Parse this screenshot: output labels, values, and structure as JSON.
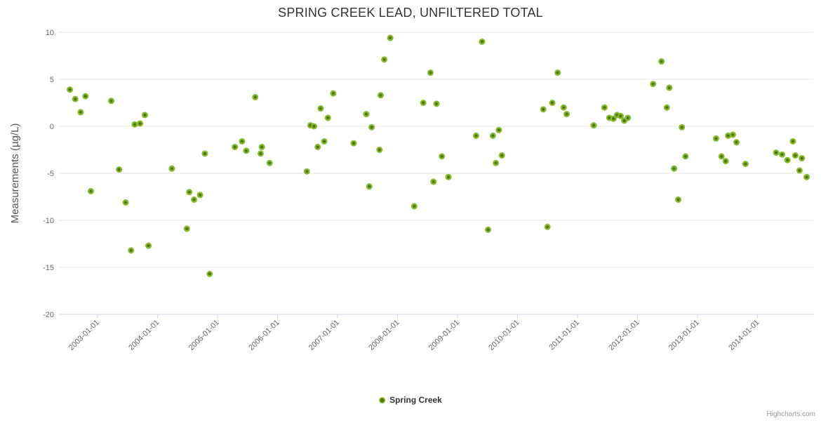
{
  "title": "SPRING CREEK LEAD, UNFILTERED TOTAL",
  "legend": {
    "label": "Spring Creek"
  },
  "credits": "Highcharts.com",
  "colors": {
    "marker_outer": "#84bb2a",
    "marker_inner": "#4b7405",
    "grid": "#e6e6e6",
    "axis_line": "#ccd6eb",
    "tick_label": "#666666",
    "axis_title": "#555555",
    "title_text": "#333333",
    "credits_text": "#999999",
    "background": "#ffffff"
  },
  "chart_data": {
    "type": "scatter",
    "title": "SPRING CREEK LEAD, UNFILTERED TOTAL",
    "xlabel": "",
    "ylabel": "Measurements (µg/L)",
    "ylim": [
      -20,
      10
    ],
    "x_range": [
      2002.37,
      2014.93
    ],
    "y_ticks": [
      10,
      5,
      0,
      -5,
      -10,
      -15,
      -20
    ],
    "x_tick_years": [
      2003,
      2004,
      2005,
      2006,
      2007,
      2008,
      2009,
      2010,
      2011,
      2012,
      2013,
      2014
    ],
    "x_tick_labels": [
      "2003-01-01",
      "2004-01-01",
      "2005-01-01",
      "2006-01-01",
      "2007-01-01",
      "2008-01-01",
      "2009-01-01",
      "2010-01-01",
      "2011-01-01",
      "2012-01-01",
      "2013-01-01",
      "2014-01-01"
    ],
    "grid": "horizontal",
    "legend_position": "bottom-center",
    "series": [
      {
        "name": "Spring Creek",
        "color": "#84bb2a",
        "points": [
          [
            2002.54,
            3.9
          ],
          [
            2002.63,
            2.9
          ],
          [
            2002.72,
            1.5
          ],
          [
            2002.8,
            3.2
          ],
          [
            2002.89,
            -6.9
          ],
          [
            2003.23,
            2.7
          ],
          [
            2003.36,
            -4.6
          ],
          [
            2003.47,
            -8.1
          ],
          [
            2003.56,
            -13.2
          ],
          [
            2003.62,
            0.2
          ],
          [
            2003.71,
            0.3
          ],
          [
            2003.79,
            1.2
          ],
          [
            2003.85,
            -12.7
          ],
          [
            2004.24,
            -4.5
          ],
          [
            2004.49,
            -10.9
          ],
          [
            2004.53,
            -7.0
          ],
          [
            2004.61,
            -7.8
          ],
          [
            2004.71,
            -7.3
          ],
          [
            2004.79,
            -2.9
          ],
          [
            2004.87,
            -15.7
          ],
          [
            2005.29,
            -2.2
          ],
          [
            2005.41,
            -1.6
          ],
          [
            2005.48,
            -2.6
          ],
          [
            2005.63,
            3.1
          ],
          [
            2005.72,
            -2.9
          ],
          [
            2005.74,
            -2.2
          ],
          [
            2005.87,
            -3.9
          ],
          [
            2006.49,
            -4.8
          ],
          [
            2006.55,
            0.1
          ],
          [
            2006.61,
            0.0
          ],
          [
            2006.67,
            -2.2
          ],
          [
            2006.72,
            1.9
          ],
          [
            2006.78,
            -1.6
          ],
          [
            2006.84,
            0.9
          ],
          [
            2006.93,
            3.5
          ],
          [
            2007.27,
            -1.8
          ],
          [
            2007.48,
            1.3
          ],
          [
            2007.53,
            -6.4
          ],
          [
            2007.57,
            -0.1
          ],
          [
            2007.7,
            -2.5
          ],
          [
            2007.72,
            3.3
          ],
          [
            2007.78,
            7.1
          ],
          [
            2007.88,
            9.4
          ],
          [
            2008.28,
            -8.5
          ],
          [
            2008.43,
            2.5
          ],
          [
            2008.55,
            5.7
          ],
          [
            2008.6,
            -5.9
          ],
          [
            2008.65,
            2.4
          ],
          [
            2008.74,
            -3.2
          ],
          [
            2008.85,
            -5.4
          ],
          [
            2009.31,
            -1.0
          ],
          [
            2009.41,
            9.0
          ],
          [
            2009.51,
            -11.0
          ],
          [
            2009.59,
            -1.0
          ],
          [
            2009.64,
            -3.9
          ],
          [
            2009.69,
            -0.4
          ],
          [
            2009.74,
            -3.1
          ],
          [
            2010.43,
            1.8
          ],
          [
            2010.5,
            -10.7
          ],
          [
            2010.58,
            2.5
          ],
          [
            2010.67,
            5.7
          ],
          [
            2010.77,
            2.0
          ],
          [
            2010.82,
            1.3
          ],
          [
            2011.27,
            0.1
          ],
          [
            2011.45,
            2.0
          ],
          [
            2011.53,
            0.9
          ],
          [
            2011.6,
            0.8
          ],
          [
            2011.66,
            1.2
          ],
          [
            2011.72,
            1.1
          ],
          [
            2011.78,
            0.6
          ],
          [
            2011.84,
            0.9
          ],
          [
            2012.26,
            4.5
          ],
          [
            2012.4,
            6.9
          ],
          [
            2012.49,
            2.0
          ],
          [
            2012.53,
            4.1
          ],
          [
            2012.61,
            -4.5
          ],
          [
            2012.68,
            -7.8
          ],
          [
            2012.74,
            -0.1
          ],
          [
            2012.8,
            -3.2
          ],
          [
            2013.31,
            -1.3
          ],
          [
            2013.4,
            -3.2
          ],
          [
            2013.47,
            -3.7
          ],
          [
            2013.51,
            -1.0
          ],
          [
            2013.59,
            -0.9
          ],
          [
            2013.65,
            -1.7
          ],
          [
            2013.8,
            -4.0
          ],
          [
            2014.31,
            -2.8
          ],
          [
            2014.41,
            -3.0
          ],
          [
            2014.5,
            -3.6
          ],
          [
            2014.59,
            -1.6
          ],
          [
            2014.63,
            -3.1
          ],
          [
            2014.7,
            -4.7
          ],
          [
            2014.74,
            -3.4
          ],
          [
            2014.82,
            -5.4
          ]
        ]
      }
    ]
  }
}
